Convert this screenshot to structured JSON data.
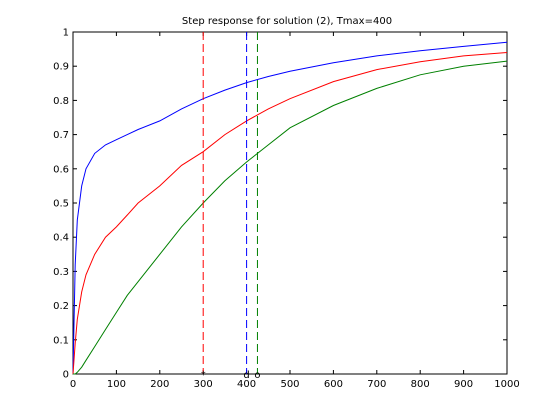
{
  "chart_data": {
    "type": "line",
    "title": "Step response for solution (2), Tmax=400",
    "xlabel": "",
    "ylabel": "",
    "xlim": [
      0,
      1000
    ],
    "ylim": [
      0,
      1
    ],
    "grid": false,
    "x_ticks": [
      0,
      100,
      200,
      300,
      400,
      500,
      600,
      700,
      800,
      900,
      1000
    ],
    "y_ticks": [
      0,
      0.1,
      0.2,
      0.3,
      0.4,
      0.5,
      0.6,
      0.7,
      0.8,
      0.9,
      1
    ],
    "x": [
      0,
      5,
      10,
      20,
      30,
      50,
      75,
      100,
      125,
      150,
      200,
      250,
      300,
      350,
      400,
      450,
      500,
      600,
      700,
      800,
      900,
      1000
    ],
    "series": [
      {
        "color": "#0000ff",
        "style": "solid",
        "values": [
          0.0,
          0.32,
          0.45,
          0.55,
          0.6,
          0.645,
          0.67,
          0.685,
          0.7,
          0.715,
          0.74,
          0.775,
          0.805,
          0.83,
          0.852,
          0.87,
          0.885,
          0.91,
          0.93,
          0.945,
          0.958,
          0.97
        ]
      },
      {
        "color": "#ff0000",
        "style": "solid",
        "values": [
          0.0,
          0.09,
          0.16,
          0.24,
          0.29,
          0.35,
          0.4,
          0.43,
          0.465,
          0.5,
          0.55,
          0.61,
          0.65,
          0.7,
          0.74,
          0.775,
          0.805,
          0.855,
          0.89,
          0.913,
          0.93,
          0.94
        ]
      },
      {
        "color": "#008000",
        "style": "solid",
        "values": [
          0.0,
          0.0,
          0.005,
          0.02,
          0.04,
          0.08,
          0.13,
          0.18,
          0.23,
          0.27,
          0.35,
          0.43,
          0.5,
          0.565,
          0.62,
          0.67,
          0.72,
          0.785,
          0.835,
          0.875,
          0.9,
          0.915
        ]
      }
    ],
    "vlines": [
      {
        "x": 300,
        "color": "#ff0000",
        "style": "dashed"
      },
      {
        "x": 400,
        "color": "#0000ff",
        "style": "dashed"
      },
      {
        "x": 425,
        "color": "#008000",
        "style": "dashed"
      }
    ],
    "markers": [
      {
        "x": 300,
        "y": 0,
        "symbol": "*"
      },
      {
        "x": 400,
        "y": 0,
        "symbol": "d"
      },
      {
        "x": 425,
        "y": 0,
        "symbol": "o"
      }
    ]
  }
}
